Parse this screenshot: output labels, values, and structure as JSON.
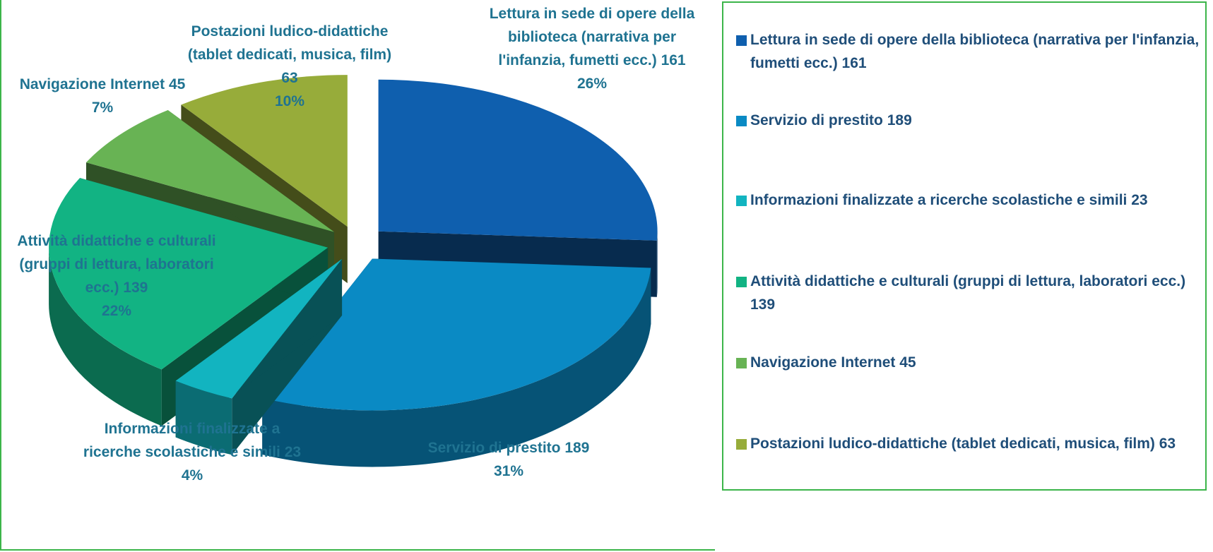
{
  "chart_data": {
    "type": "pie3d",
    "categories": [
      "Lettura in sede di opere della biblioteca (narrativa per l'infanzia, fumetti ecc.)",
      "Servizio di prestito",
      "Informazioni finalizzate a ricerche scolastiche e simili",
      "Attività didattiche e culturali (gruppi di lettura, laboratori ecc.)",
      "Navigazione Internet",
      "Postazioni ludico-didattiche (tablet dedicati, musica, film)"
    ],
    "values": [
      161,
      189,
      23,
      139,
      45,
      63
    ],
    "percentages": [
      26,
      31,
      4,
      22,
      7,
      10
    ],
    "percentage_labels": [
      "26%",
      "31%",
      "4%",
      "22%",
      "7%",
      "10%"
    ],
    "colors": [
      "#0f5fae",
      "#0a8ac4",
      "#12b4c0",
      "#12b383",
      "#68b354",
      "#97ac3a"
    ],
    "legend": "right"
  }
}
